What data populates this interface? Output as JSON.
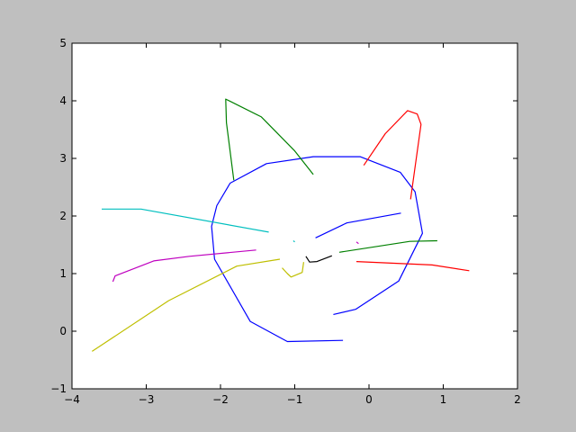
{
  "chart_data": {
    "type": "line",
    "title": "",
    "xlabel": "",
    "ylabel": "",
    "xlim": [
      -4,
      2
    ],
    "ylim": [
      -1,
      5
    ],
    "grid": false,
    "legend": "none",
    "x_ticks": [
      -4,
      -3,
      -2,
      -1,
      0,
      1,
      2
    ],
    "x_tick_labels": [
      "−4",
      "−3",
      "−2",
      "−1",
      "0",
      "1",
      "2"
    ],
    "y_ticks": [
      -1,
      0,
      1,
      2,
      3,
      4,
      5
    ],
    "y_tick_labels": [
      "−1",
      "0",
      "1",
      "2",
      "3",
      "4",
      "5"
    ],
    "series": [
      {
        "color": "#0000ff",
        "points": [
          [
            -0.35,
            -0.16
          ],
          [
            -1.1,
            -0.18
          ],
          [
            -1.6,
            0.17
          ],
          [
            -2.08,
            1.25
          ],
          [
            -2.12,
            1.82
          ],
          [
            -2.05,
            2.18
          ],
          [
            -1.87,
            2.57
          ],
          [
            -1.38,
            2.91
          ],
          [
            -0.75,
            3.03
          ],
          [
            -0.12,
            3.03
          ],
          [
            0.42,
            2.76
          ],
          [
            0.62,
            2.42
          ],
          [
            0.72,
            1.7
          ],
          [
            0.4,
            0.87
          ],
          [
            -0.18,
            0.38
          ],
          [
            -0.48,
            0.29
          ]
        ]
      },
      {
        "color": "#0000ff",
        "points": [
          [
            -0.72,
            1.62
          ],
          [
            -0.3,
            1.88
          ],
          [
            0.43,
            2.05
          ]
        ]
      },
      {
        "color": "#008000",
        "points": [
          [
            -1.82,
            2.62
          ],
          [
            -1.92,
            3.62
          ],
          [
            -1.93,
            4.03
          ],
          [
            -1.45,
            3.72
          ],
          [
            -1.0,
            3.13
          ],
          [
            -0.75,
            2.72
          ]
        ]
      },
      {
        "color": "#008000",
        "points": [
          [
            -0.4,
            1.37
          ],
          [
            0.55,
            1.56
          ],
          [
            0.92,
            1.57
          ]
        ]
      },
      {
        "color": "#ff0000",
        "points": [
          [
            -0.07,
            2.88
          ],
          [
            0.22,
            3.43
          ],
          [
            0.52,
            3.83
          ],
          [
            0.65,
            3.77
          ],
          [
            0.7,
            3.59
          ],
          [
            0.56,
            2.29
          ]
        ]
      },
      {
        "color": "#ff0000",
        "points": [
          [
            -0.17,
            1.21
          ],
          [
            0.85,
            1.15
          ],
          [
            1.35,
            1.05
          ]
        ]
      },
      {
        "color": "#00bfbf",
        "points": [
          [
            -3.6,
            2.12
          ],
          [
            -3.07,
            2.12
          ],
          [
            -1.35,
            1.72
          ]
        ]
      },
      {
        "color": "#00bfbf",
        "points": [
          [
            -1.02,
            1.57
          ],
          [
            -1.0,
            1.55
          ]
        ]
      },
      {
        "color": "#bf00bf",
        "points": [
          [
            -3.45,
            0.86
          ],
          [
            -3.42,
            0.96
          ],
          [
            -2.9,
            1.22
          ],
          [
            -2.42,
            1.3
          ],
          [
            -1.52,
            1.41
          ]
        ]
      },
      {
        "color": "#bf00bf",
        "points": [
          [
            -0.17,
            1.55
          ],
          [
            -0.14,
            1.52
          ]
        ]
      },
      {
        "color": "#bfbf00",
        "points": [
          [
            -3.73,
            -0.35
          ],
          [
            -2.7,
            0.53
          ],
          [
            -1.78,
            1.13
          ],
          [
            -1.2,
            1.25
          ]
        ]
      },
      {
        "color": "#bfbf00",
        "points": [
          [
            -1.17,
            1.1
          ],
          [
            -1.1,
            1.0
          ],
          [
            -1.05,
            0.94
          ],
          [
            -0.9,
            1.02
          ],
          [
            -0.88,
            1.2
          ]
        ]
      },
      {
        "color": "#000000",
        "points": [
          [
            -0.85,
            1.3
          ],
          [
            -0.8,
            1.2
          ],
          [
            -0.7,
            1.21
          ],
          [
            -0.5,
            1.31
          ]
        ]
      }
    ]
  }
}
